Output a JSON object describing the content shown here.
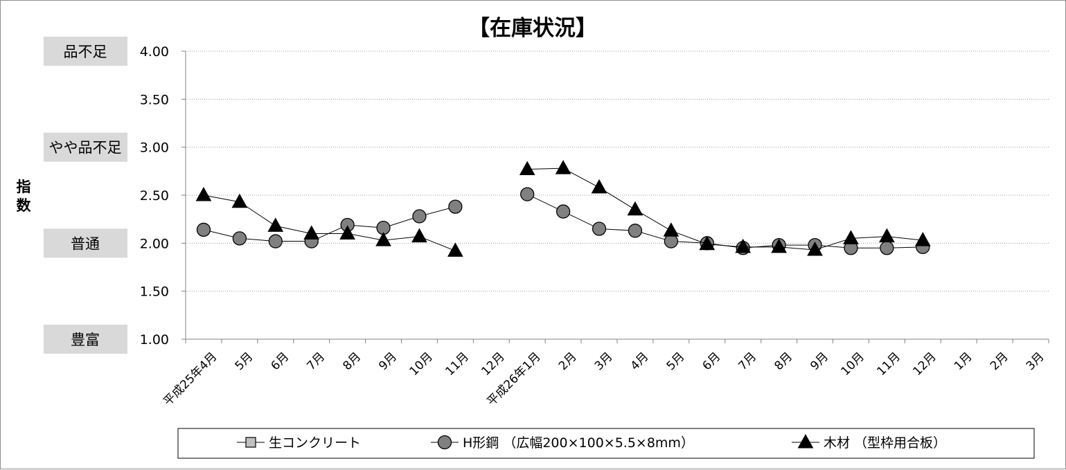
{
  "chart_data": {
    "type": "line",
    "title": "【在庫状況】",
    "ylabel": [
      "指",
      "数"
    ],
    "ylim": [
      1.0,
      4.0
    ],
    "yticks": [
      "4.00",
      "3.50",
      "3.00",
      "2.50",
      "2.00",
      "1.50",
      "1.00"
    ],
    "ytick_values": [
      4.0,
      3.5,
      3.0,
      2.5,
      2.0,
      1.5,
      1.0
    ],
    "category_labels": [
      {
        "label": "品不足",
        "value": 4.0
      },
      {
        "label": "やや品不足",
        "value": 3.0
      },
      {
        "label": "普通",
        "value": 2.0
      },
      {
        "label": "豊富",
        "value": 1.0
      }
    ],
    "categories": [
      "平成25年4月",
      "5月",
      "6月",
      "7月",
      "8月",
      "9月",
      "10月",
      "11月",
      "12月",
      "平成26年1月",
      "2月",
      "3月",
      "4月",
      "5月",
      "6月",
      "7月",
      "8月",
      "9月",
      "10月",
      "11月",
      "12月",
      "1月",
      "2月",
      "3月"
    ],
    "grid": true,
    "legend_position": "bottom",
    "series": [
      {
        "name": "生コンクリート",
        "marker": "square",
        "color": "#c0c0c0",
        "values": [
          null,
          null,
          null,
          null,
          null,
          null,
          null,
          null,
          null,
          null,
          null,
          null,
          null,
          null,
          null,
          null,
          null,
          null,
          null,
          null,
          null,
          null,
          null,
          null
        ]
      },
      {
        "name": "H形鋼 （広幅200×100×5.5×8mm）",
        "marker": "circle",
        "color": "#808080",
        "values": [
          2.14,
          2.05,
          2.02,
          2.02,
          2.19,
          2.16,
          2.28,
          2.38,
          null,
          2.51,
          2.33,
          2.15,
          2.13,
          2.02,
          2.0,
          1.95,
          1.98,
          1.98,
          1.95,
          1.95,
          1.96,
          null,
          null,
          null
        ]
      },
      {
        "name": "木材 （型枠用合板）",
        "marker": "triangle",
        "color": "#000000",
        "values": [
          2.5,
          2.43,
          2.18,
          2.1,
          2.1,
          2.03,
          2.07,
          1.92,
          null,
          2.77,
          2.78,
          2.58,
          2.35,
          2.13,
          1.99,
          1.96,
          1.96,
          1.93,
          2.05,
          2.07,
          2.03,
          null,
          null,
          null
        ]
      }
    ]
  }
}
